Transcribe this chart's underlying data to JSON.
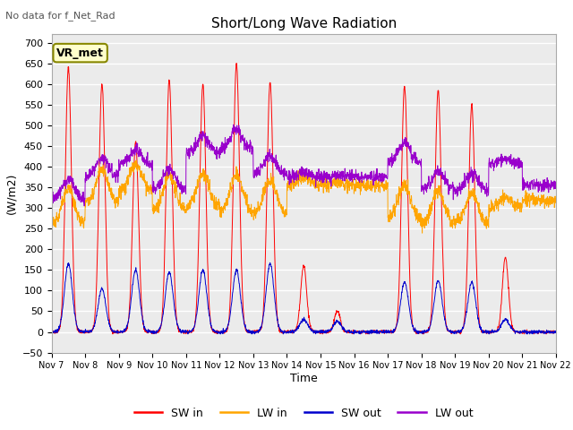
{
  "title": "Short/Long Wave Radiation",
  "xlabel": "Time",
  "ylabel": "(W/m2)",
  "ylim": [
    -50,
    720
  ],
  "yticks": [
    -50,
    0,
    50,
    100,
    150,
    200,
    250,
    300,
    350,
    400,
    450,
    500,
    550,
    600,
    650,
    700
  ],
  "annotation_text": "No data for f_Net_Rad",
  "box_label": "VR_met",
  "colors": {
    "SW_in": "#FF0000",
    "LW_in": "#FFA500",
    "SW_out": "#0000CD",
    "LW_out": "#9900CC"
  },
  "legend_labels": [
    "SW in",
    "LW in",
    "SW out",
    "LW out"
  ],
  "plot_bg": "#EBEBEB",
  "n_days": 15,
  "start_day": 7,
  "sw_peaks": [
    640,
    600,
    460,
    610,
    600,
    650,
    605,
    160,
    50,
    0,
    595,
    585,
    550,
    180,
    0
  ],
  "sw_out_peaks": [
    165,
    105,
    150,
    145,
    150,
    150,
    165,
    30,
    25,
    0,
    120,
    125,
    120,
    30,
    0
  ],
  "lw_in_base": [
    260,
    310,
    340,
    295,
    300,
    290,
    285,
    355,
    355,
    355,
    275,
    260,
    260,
    300,
    320
  ],
  "lw_out_base": [
    320,
    375,
    405,
    345,
    430,
    440,
    380,
    375,
    375,
    375,
    410,
    345,
    340,
    405,
    355
  ]
}
